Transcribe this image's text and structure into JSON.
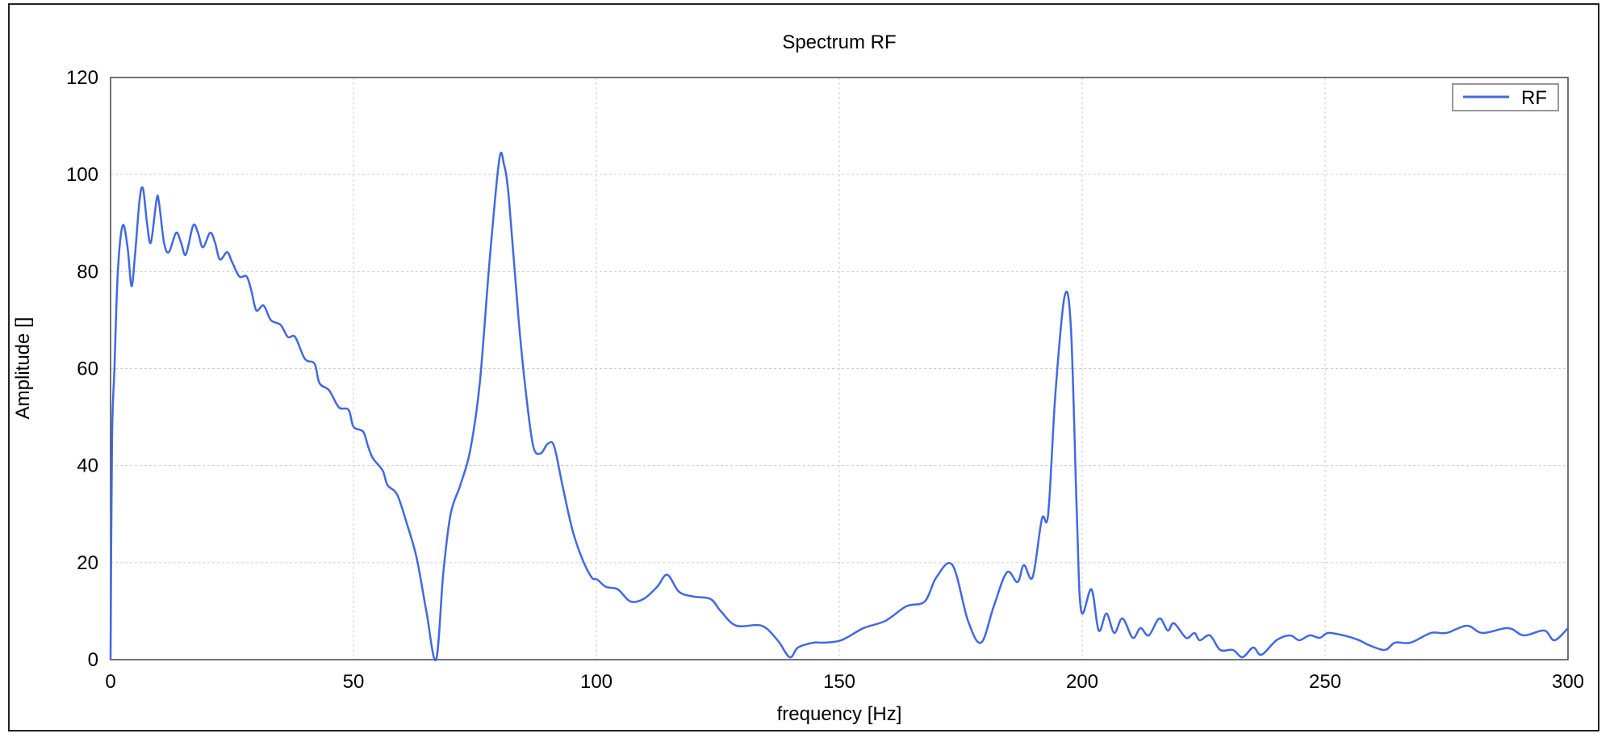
{
  "chart_data": {
    "type": "line",
    "title": "Spectrum RF",
    "xlabel": "frequency [Hz]",
    "ylabel": "Amplitude []",
    "xlim": [
      0,
      300
    ],
    "ylim": [
      0,
      120
    ],
    "xticks": [
      "0",
      "50",
      "100",
      "150",
      "200",
      "250",
      "300"
    ],
    "yticks": [
      "0",
      "20",
      "40",
      "60",
      "80",
      "100",
      "120"
    ],
    "grid": true,
    "legend": {
      "position": "top-right",
      "entries": [
        "RF"
      ]
    },
    "series": [
      {
        "name": "RF",
        "color": "#4169e1",
        "x": [
          0,
          0.3,
          0.8,
          1.5,
          2.5,
          3.5,
          4.3,
          5,
          6,
          6.7,
          7.5,
          8.3,
          9.5,
          10,
          11,
          12,
          13.5,
          14.5,
          15.5,
          17,
          18,
          19,
          20.5,
          21.5,
          22.5,
          24,
          25,
          26.5,
          28,
          29,
          30,
          31.5,
          33,
          35,
          36.5,
          38,
          40,
          42,
          43,
          45,
          47,
          49,
          50,
          52,
          53,
          54,
          56,
          57,
          59,
          61,
          63,
          65,
          67,
          68.5,
          70,
          72,
          74,
          76,
          78,
          80,
          81,
          82,
          84,
          85.5,
          87,
          88.5,
          90,
          91.3,
          93,
          95,
          97,
          99,
          100.2,
          102,
          104.4,
          107,
          109.7,
          112.5,
          114.6,
          117,
          120,
          123.5,
          125.6,
          128.8,
          134,
          137.3,
          139.8,
          141.5,
          144.7,
          146.8,
          150.4,
          155,
          159.5,
          163.8,
          167.6,
          170,
          173.3,
          176.5,
          179.2,
          181.8,
          184.5,
          186.7,
          188,
          189.8,
          191.7,
          193,
          194.5,
          196.4,
          197.7,
          198.9,
          199.8,
          201.9,
          203.4,
          205,
          206.6,
          208.3,
          210.4,
          212,
          213.7,
          215.9,
          217.6,
          218.9,
          221.4,
          223.1,
          224.2,
          226.3,
          228.4,
          231,
          233,
          235.2,
          236.9,
          240,
          242.8,
          244.7,
          246.8,
          248.9,
          250.6,
          253.8,
          257,
          259,
          262.3,
          264.4,
          267.6,
          271.8,
          275,
          279.2,
          282.4,
          287.7,
          290.9,
          295.1,
          297.2,
          300
        ],
        "y": [
          0,
          45,
          60,
          80,
          89.5,
          85,
          77,
          83,
          95,
          97,
          90,
          86,
          95,
          94,
          86,
          84,
          88,
          86,
          83.5,
          89.5,
          88,
          85,
          88,
          86,
          82.5,
          84,
          82,
          79,
          79,
          76,
          72,
          73,
          70,
          69,
          66.5,
          66.5,
          62,
          61,
          57,
          55.5,
          52,
          51.5,
          48,
          47,
          44,
          41.5,
          39,
          36,
          34,
          28,
          21,
          10,
          0,
          18,
          30,
          36,
          43,
          57,
          82,
          103,
          102,
          95,
          70,
          55,
          44,
          42.5,
          44.5,
          44,
          36,
          27,
          21,
          17,
          16.5,
          15,
          14.5,
          12,
          12.5,
          15,
          17.5,
          14,
          13,
          12.5,
          10,
          7,
          7,
          4,
          0.5,
          2.5,
          3.5,
          3.5,
          4,
          6.5,
          8,
          11,
          12,
          17,
          19.5,
          8,
          3.5,
          11,
          18,
          16,
          19.5,
          17,
          29,
          30,
          55,
          75,
          68,
          30,
          10,
          14.5,
          6,
          9.5,
          5.5,
          8.5,
          4.5,
          6.5,
          5,
          8.5,
          6,
          7.5,
          4.5,
          5.5,
          4,
          5,
          2,
          2,
          0.5,
          2.5,
          1,
          4,
          5,
          4,
          5,
          4.5,
          5.5,
          5,
          4,
          3,
          2,
          3.5,
          3.5,
          5.5,
          5.5,
          7,
          5.5,
          6.5,
          5,
          6,
          4,
          6.5
        ]
      }
    ]
  }
}
